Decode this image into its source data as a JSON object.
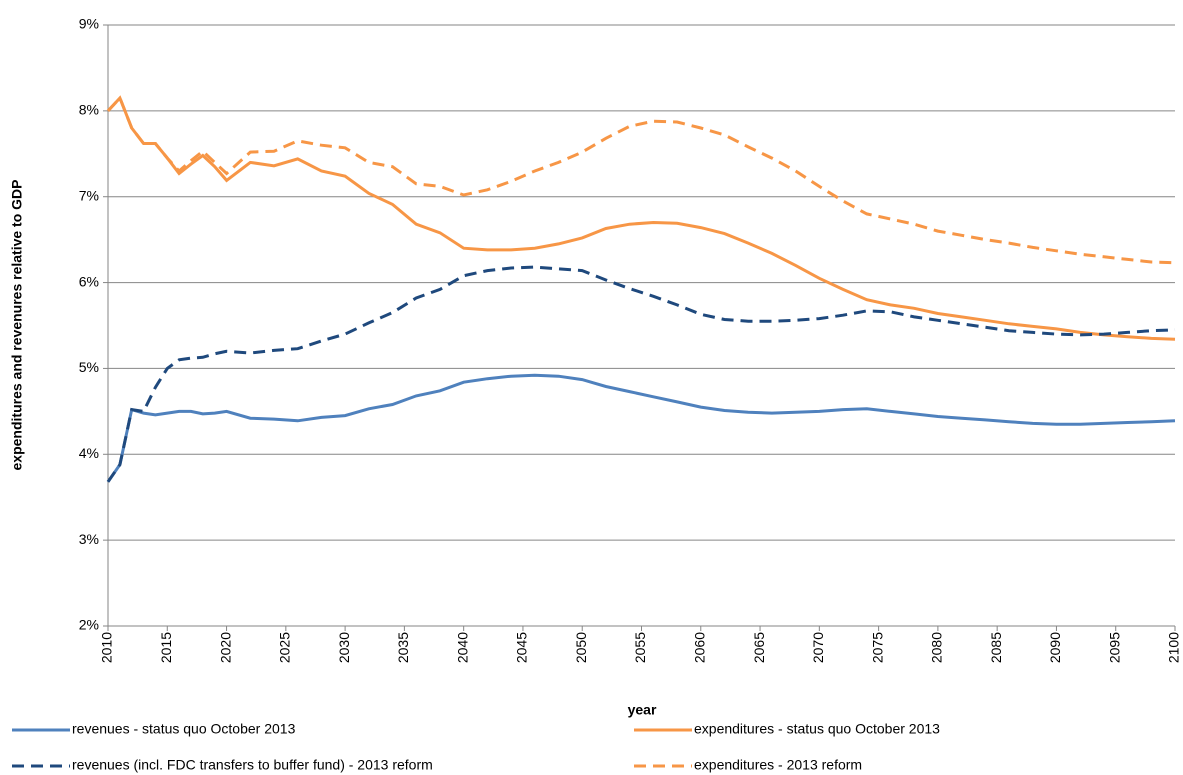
{
  "chart_data": {
    "type": "line",
    "x_label": "year",
    "y_label": "expenditures and revenures relative to GDP",
    "x": [
      2010,
      2011,
      2012,
      2013,
      2014,
      2015,
      2016,
      2017,
      2018,
      2019,
      2020,
      2022,
      2024,
      2026,
      2028,
      2030,
      2032,
      2034,
      2036,
      2038,
      2040,
      2042,
      2044,
      2046,
      2048,
      2050,
      2052,
      2054,
      2056,
      2058,
      2060,
      2062,
      2064,
      2066,
      2068,
      2070,
      2072,
      2074,
      2076,
      2078,
      2080,
      2082,
      2084,
      2086,
      2088,
      2090,
      2092,
      2094,
      2096,
      2098,
      2100
    ],
    "series": [
      {
        "name": "revenues - status quo October 2013",
        "color": "#4f81bd",
        "dashed": false,
        "values": [
          3.68,
          3.88,
          4.52,
          4.48,
          4.46,
          4.48,
          4.5,
          4.5,
          4.47,
          4.48,
          4.5,
          4.42,
          4.41,
          4.39,
          4.43,
          4.45,
          4.53,
          4.58,
          4.68,
          4.74,
          4.84,
          4.88,
          4.91,
          4.92,
          4.91,
          4.87,
          4.79,
          4.73,
          4.67,
          4.61,
          4.55,
          4.51,
          4.49,
          4.48,
          4.49,
          4.5,
          4.52,
          4.53,
          4.5,
          4.47,
          4.44,
          4.42,
          4.4,
          4.38,
          4.36,
          4.35,
          4.35,
          4.36,
          4.37,
          4.38,
          4.39
        ]
      },
      {
        "name": "expenditures - status quo October 2013",
        "color": "#f79646",
        "dashed": false,
        "values": [
          8.0,
          8.15,
          7.8,
          7.62,
          7.62,
          7.45,
          7.27,
          7.38,
          7.48,
          7.35,
          7.19,
          7.4,
          7.36,
          7.44,
          7.3,
          7.24,
          7.04,
          6.91,
          6.68,
          6.58,
          6.4,
          6.38,
          6.38,
          6.4,
          6.45,
          6.52,
          6.63,
          6.68,
          6.7,
          6.69,
          6.64,
          6.57,
          6.46,
          6.34,
          6.2,
          6.05,
          5.92,
          5.8,
          5.74,
          5.7,
          5.64,
          5.6,
          5.56,
          5.52,
          5.49,
          5.46,
          5.42,
          5.39,
          5.37,
          5.35,
          5.34
        ]
      },
      {
        "name": "revenues (incl. FDC transfers to buffer fund) - 2013 reform",
        "color": "#1f497d",
        "dashed": true,
        "values": [
          3.68,
          3.88,
          4.52,
          4.5,
          4.78,
          5.0,
          5.1,
          5.12,
          5.13,
          5.17,
          5.2,
          5.18,
          5.21,
          5.23,
          5.32,
          5.4,
          5.53,
          5.65,
          5.82,
          5.92,
          6.08,
          6.14,
          6.17,
          6.18,
          6.16,
          6.14,
          6.03,
          5.93,
          5.84,
          5.74,
          5.63,
          5.57,
          5.55,
          5.55,
          5.56,
          5.58,
          5.62,
          5.67,
          5.66,
          5.6,
          5.56,
          5.52,
          5.48,
          5.44,
          5.42,
          5.4,
          5.39,
          5.4,
          5.42,
          5.44,
          5.45
        ]
      },
      {
        "name": "expenditures - 2013 reform",
        "color": "#f79646",
        "dashed": true,
        "values": [
          8.0,
          8.15,
          7.8,
          7.62,
          7.62,
          7.45,
          7.3,
          7.42,
          7.53,
          7.4,
          7.27,
          7.52,
          7.53,
          7.65,
          7.6,
          7.57,
          7.4,
          7.35,
          7.15,
          7.12,
          7.02,
          7.08,
          7.18,
          7.3,
          7.4,
          7.52,
          7.68,
          7.82,
          7.88,
          7.87,
          7.8,
          7.72,
          7.58,
          7.45,
          7.3,
          7.12,
          6.95,
          6.8,
          6.74,
          6.68,
          6.6,
          6.55,
          6.5,
          6.46,
          6.41,
          6.37,
          6.33,
          6.3,
          6.27,
          6.24,
          6.23
        ]
      }
    ],
    "xlim": [
      2010,
      2100
    ],
    "xticks": [
      2010,
      2015,
      2020,
      2025,
      2030,
      2035,
      2040,
      2045,
      2050,
      2055,
      2060,
      2065,
      2070,
      2075,
      2080,
      2085,
      2090,
      2095,
      2100
    ],
    "ylim": [
      2,
      9
    ],
    "yticks": [
      {
        "value": 2,
        "label": "2%"
      },
      {
        "value": 3,
        "label": "3%"
      },
      {
        "value": 4,
        "label": "4%"
      },
      {
        "value": 5,
        "label": "5%"
      },
      {
        "value": 6,
        "label": "6%"
      },
      {
        "value": 7,
        "label": "7%"
      },
      {
        "value": 8,
        "label": "8%"
      },
      {
        "value": 9,
        "label": "9%"
      }
    ],
    "grid": true,
    "legend": "bottom"
  }
}
